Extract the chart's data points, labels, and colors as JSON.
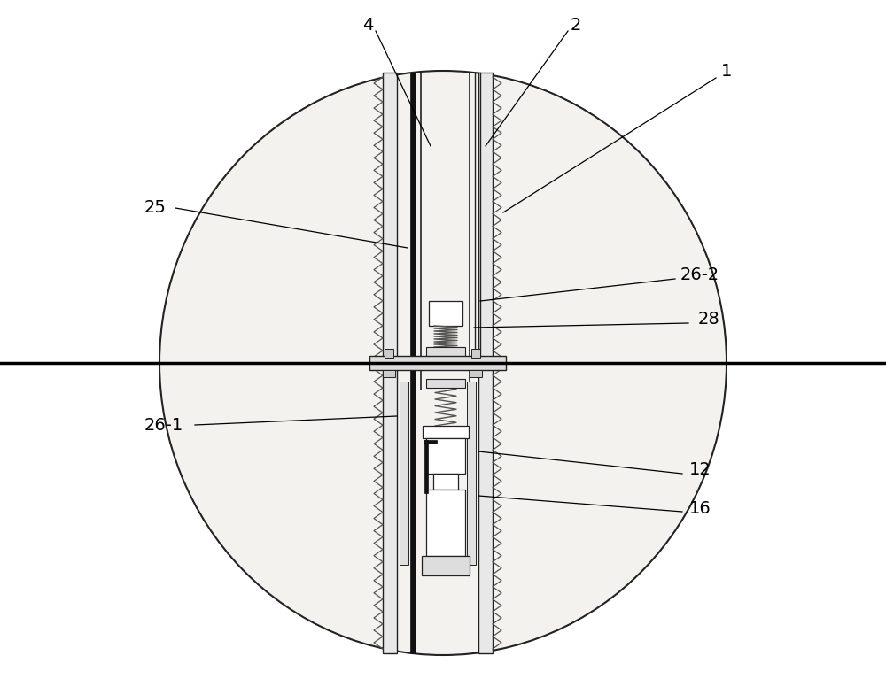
{
  "bg_color": "#ffffff",
  "fig_width": 10.0,
  "fig_height": 7.67,
  "line_color": "#222222",
  "sediment_color": "#f0eeeb",
  "casing_color": "#d8d8d8",
  "white_color": "#ffffff"
}
